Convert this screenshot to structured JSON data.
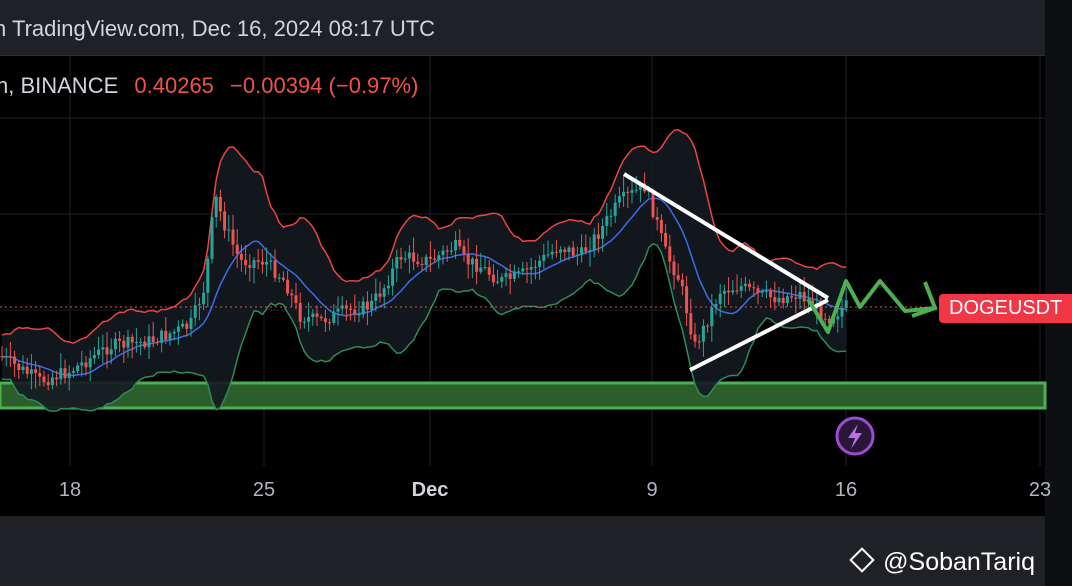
{
  "header": {
    "title": "n TradingView.com, Dec 16, 2024 08:17 UTC"
  },
  "symbol": {
    "exchange": "n, BINANCE",
    "last_price": "0.40265",
    "change": "−0.00394 (−0.97%)"
  },
  "price_label": "DOGEUSDT",
  "watermark": {
    "handle": "@SobanTariq"
  },
  "colors": {
    "background": "#000000",
    "bull": "#26a69a",
    "bear": "#ef5350",
    "upper_band": "#e84545",
    "lower_band": "#2e8b57",
    "mid_band": "#3a6ee8",
    "support_zone": "#2b5e2a",
    "projection": "#4caf50",
    "wedge": "#ffffff"
  },
  "icons": [
    "binance-diamond-icon",
    "lightning-icon"
  ],
  "chart_data": {
    "type": "candlestick",
    "x_ticks": [
      "18",
      "25",
      "Dec",
      "9",
      "16",
      "23"
    ],
    "series": [
      {
        "name": "DOGEUSDT",
        "type": "candlestick"
      }
    ],
    "last_price": 0.40265,
    "change": -0.00394,
    "change_percent": -0.97,
    "annotations": [
      "descending wedge",
      "support zone",
      "projected zigzag path"
    ]
  }
}
